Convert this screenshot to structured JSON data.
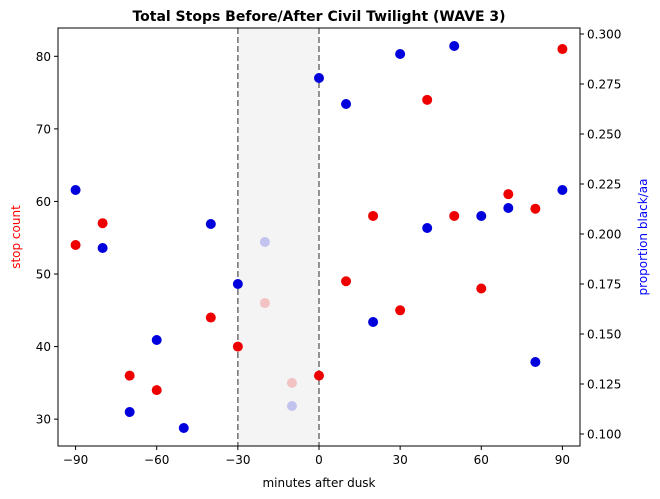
{
  "chart_data": {
    "type": "scatter",
    "title": "Total Stops Before/After Civil Twilight (WAVE 3)",
    "xlabel": "minutes after dusk",
    "ylabel_left": "stop count",
    "ylabel_right": "proportion black/aa",
    "xlim": [
      -96.5,
      96.5
    ],
    "ylim_left": [
      26.3,
      83.9
    ],
    "ylim_right": [
      0.094,
      0.303
    ],
    "x_ticks": [
      -90,
      -60,
      -30,
      0,
      30,
      60,
      90
    ],
    "x_tick_labels": [
      "−90",
      "−60",
      "−30",
      "0",
      "30",
      "60",
      "90"
    ],
    "y_left_ticks": [
      30,
      40,
      50,
      60,
      70,
      80
    ],
    "y_right_ticks": [
      0.1,
      0.125,
      0.15,
      0.175,
      0.2,
      0.225,
      0.25,
      0.275,
      0.3
    ],
    "y_right_tick_labels": [
      "0.100",
      "0.125",
      "0.150",
      "0.175",
      "0.200",
      "0.225",
      "0.250",
      "0.275",
      "0.300"
    ],
    "twilight_band": [
      -30,
      0
    ],
    "grid": false,
    "colors": {
      "count": "#ee0000",
      "proportion": "#0000dd",
      "band": "#f4f4f4",
      "vline": "#707070",
      "left_label": "#ff0000",
      "right_label": "#0000ff"
    },
    "series": [
      {
        "axis": "left",
        "x": [
          -90,
          -80,
          -70,
          -60,
          -40,
          -30,
          0,
          10,
          20,
          30,
          40,
          50,
          60,
          70,
          80,
          90
        ],
        "values": [
          54,
          57,
          36,
          34,
          44,
          40,
          36,
          49,
          58,
          45,
          74,
          58,
          48,
          61,
          59,
          81
        ]
      },
      {
        "axis": "right",
        "x": [
          -90,
          -80,
          -70,
          -60,
          -50,
          -40,
          -30,
          0,
          10,
          20,
          30,
          40,
          50,
          60,
          70,
          80,
          90
        ],
        "values": [
          0.222,
          0.193,
          0.111,
          0.147,
          0.103,
          0.205,
          0.175,
          0.278,
          0.265,
          0.156,
          0.29,
          0.203,
          0.294,
          0.209,
          0.213,
          0.136,
          0.222
        ]
      },
      {
        "axis": "left",
        "faded": true,
        "x": [
          -20,
          -10
        ],
        "values": [
          46,
          35
        ]
      },
      {
        "axis": "right",
        "faded": true,
        "x": [
          -20,
          -10
        ],
        "values": [
          0.196,
          0.114
        ]
      }
    ]
  }
}
